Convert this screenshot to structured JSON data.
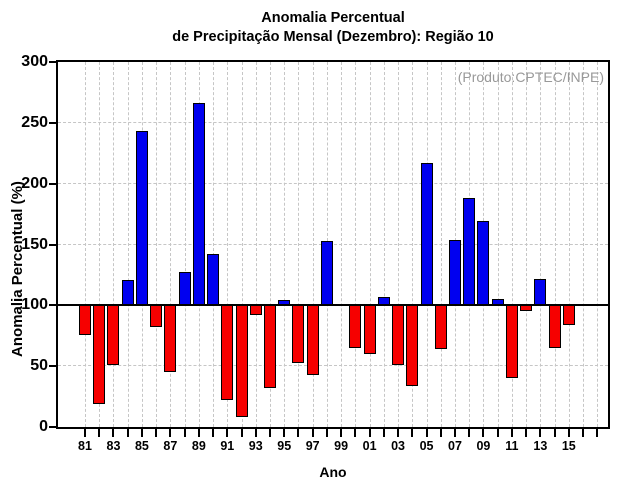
{
  "title": {
    "line1": "Anomalia Percentual",
    "line2": "de Precipitação Mensal (Dezembro): Região 10"
  },
  "annotation": {
    "text": "(Produto:CPTEC/INPE)",
    "color": "#999999"
  },
  "chart_data": {
    "type": "bar",
    "title": "Anomalia Percentual de Precipitação Mensal (Dezembro): Região 10",
    "xlabel": "Ano",
    "ylabel": "Anomalia Percentual (%)",
    "ylim": [
      0,
      300
    ],
    "yticks": [
      0,
      50,
      100,
      150,
      200,
      250,
      300
    ],
    "baseline": 100,
    "grid": true,
    "legend_position": "none",
    "categories": [
      "1981",
      "1982",
      "1983",
      "1984",
      "1985",
      "1986",
      "1987",
      "1988",
      "1989",
      "1990",
      "1991",
      "1992",
      "1993",
      "1994",
      "1995",
      "1996",
      "1997",
      "1998",
      "1999",
      "2000",
      "2001",
      "2002",
      "2003",
      "2004",
      "2005",
      "2006",
      "2007",
      "2008",
      "2009",
      "2010",
      "2011",
      "2012",
      "2013",
      "2014",
      "2015"
    ],
    "values": [
      76,
      19,
      51,
      121,
      243,
      82,
      45,
      127,
      266,
      142,
      22,
      8,
      92,
      32,
      104,
      53,
      43,
      153,
      100,
      65,
      60,
      107,
      51,
      34,
      217,
      64,
      154,
      188,
      169,
      105,
      40,
      95,
      122,
      65,
      84
    ],
    "x_tick_labels": [
      "81",
      "83",
      "85",
      "87",
      "89",
      "91",
      "93",
      "95",
      "97",
      "99",
      "01",
      "03",
      "05",
      "07",
      "09",
      "11",
      "13",
      "15"
    ],
    "colors": {
      "above_baseline": "#0000f0",
      "below_baseline": "#f60000",
      "bar_border": "#000000",
      "axis": "#000000",
      "gridline": "#c6c6c6"
    }
  }
}
